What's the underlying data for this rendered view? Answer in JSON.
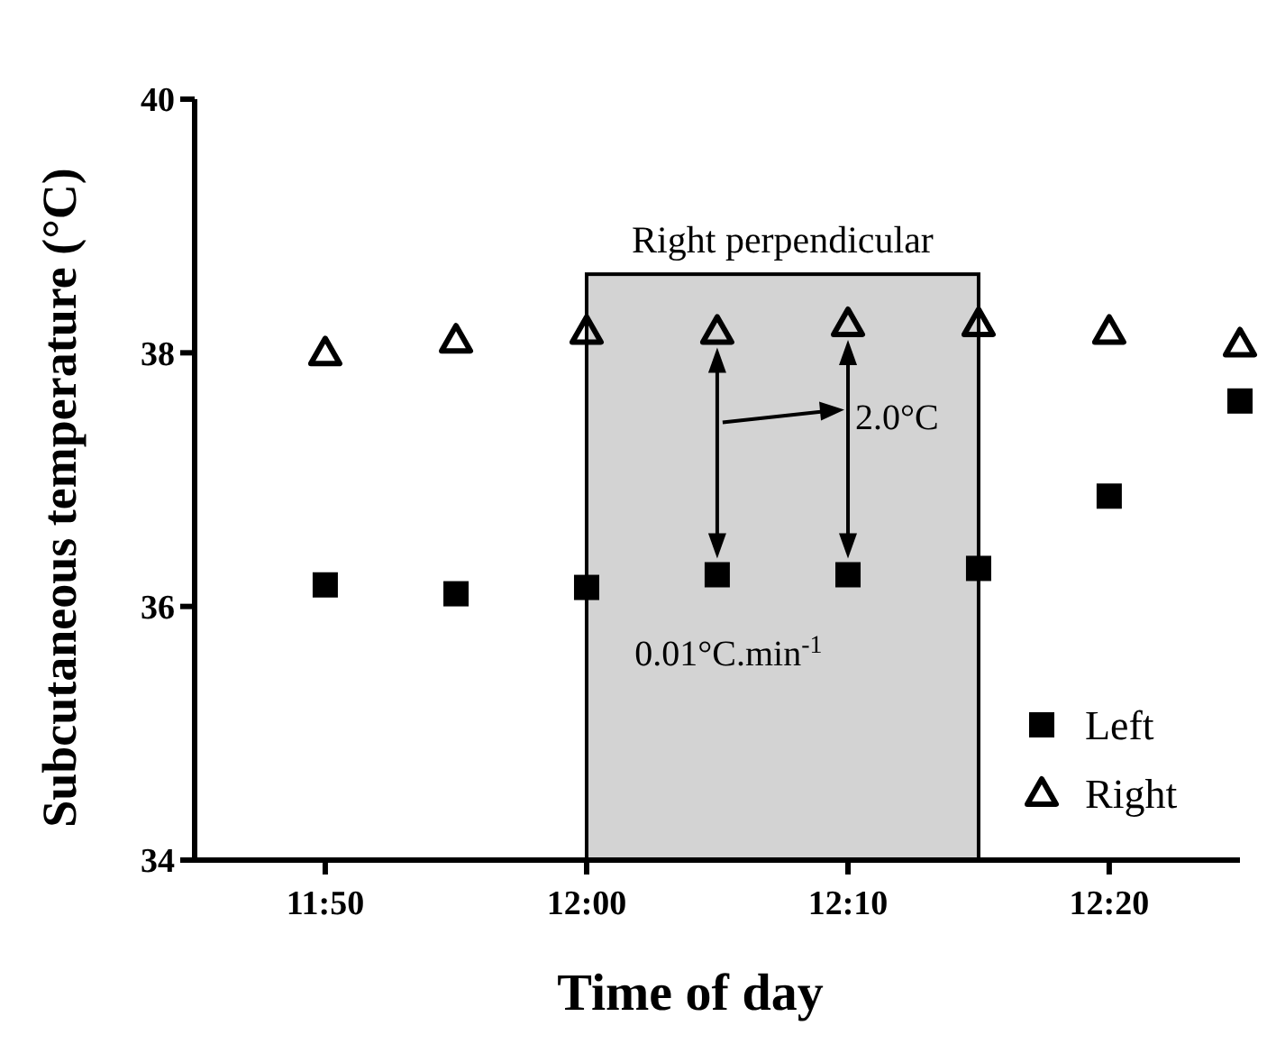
{
  "chart_data": {
    "type": "scatter",
    "xlabel": "Time of day",
    "ylabel": "Subcutaneous temperature (°C)",
    "x": [
      11.8333,
      11.9167,
      12,
      12.0833,
      12.1667,
      12.25,
      12.3333,
      12.4167
    ],
    "xlim": [
      11.75,
      12.4167
    ],
    "xticks": [
      {
        "value": 11.8333,
        "label": "11:50"
      },
      {
        "value": 12,
        "label": "12:00"
      },
      {
        "value": 12.1667,
        "label": "12:10"
      },
      {
        "value": 12.3333,
        "label": "12:20"
      }
    ],
    "ylim": [
      34,
      40
    ],
    "yticks": [
      34,
      36,
      38,
      40
    ],
    "series": [
      {
        "name": "Left",
        "color": "#000000",
        "marker": "square",
        "values": [
          36.17,
          36.1,
          36.15,
          36.25,
          36.25,
          36.3,
          36.87,
          37.62
        ]
      },
      {
        "name": "Right",
        "color": "#000000",
        "marker": "triangle",
        "values": [
          38.0,
          38.1,
          38.17,
          38.17,
          38.23,
          38.23,
          38.17,
          38.07
        ]
      }
    ],
    "bands": [
      {
        "axis": "x",
        "from": 12,
        "to": 12.25,
        "label": "Right perpendicular",
        "color": "#d3d3d3"
      }
    ],
    "annotations": [
      "2.0°C",
      "0.01°C.min$^{-1}$"
    ],
    "legend": "bottom right",
    "grid": false
  }
}
